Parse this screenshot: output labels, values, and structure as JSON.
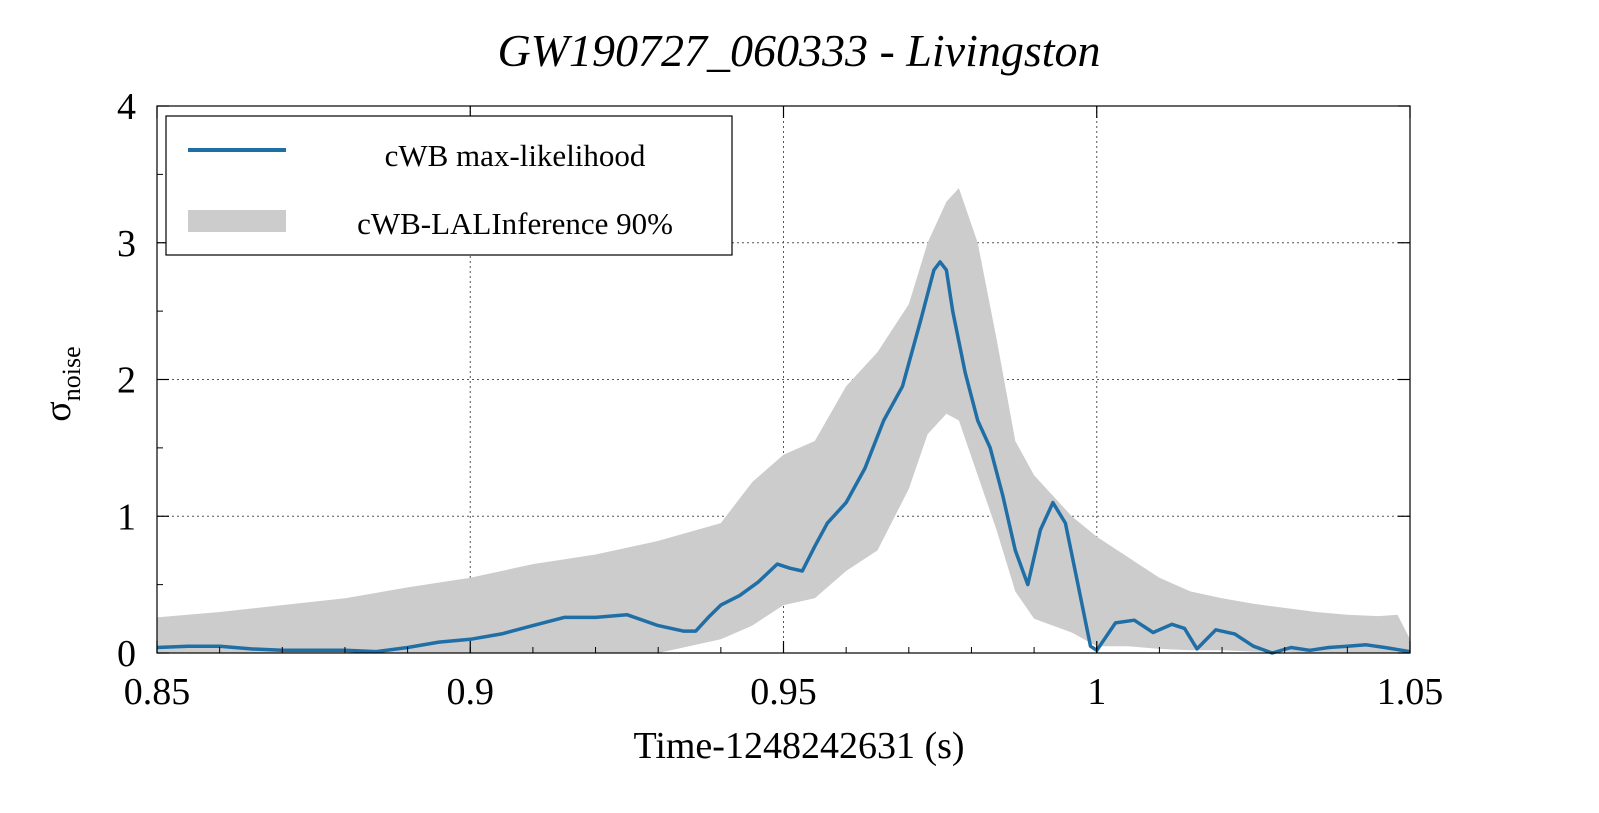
{
  "chart_data": {
    "type": "line",
    "title": "GW190727_060333 - Livingston",
    "xlabel": "Time-1248242631 (s)",
    "ylabel": "σ",
    "ylabel_sub": "noise",
    "xlim": [
      0.85,
      1.05
    ],
    "ylim": [
      0,
      4
    ],
    "xticks": [
      0.85,
      0.9,
      0.95,
      1,
      1.05
    ],
    "xtick_labels": [
      "0.85",
      "0.9",
      "0.95",
      "1",
      "1.05"
    ],
    "yticks": [
      0,
      1,
      2,
      3,
      4
    ],
    "ytick_labels": [
      "0",
      "1",
      "2",
      "3",
      "4"
    ],
    "grid": true,
    "legend_position": "top-left",
    "colors": {
      "line": "#1f6fa6",
      "band": "#cccccc",
      "grid": "#555555",
      "axis": "#000000"
    },
    "series": [
      {
        "name": "cWB max-likelihood",
        "kind": "line",
        "x": [
          0.85,
          0.855,
          0.86,
          0.865,
          0.87,
          0.875,
          0.88,
          0.885,
          0.89,
          0.895,
          0.9,
          0.905,
          0.91,
          0.915,
          0.92,
          0.925,
          0.93,
          0.934,
          0.936,
          0.938,
          0.94,
          0.943,
          0.946,
          0.949,
          0.951,
          0.953,
          0.955,
          0.957,
          0.96,
          0.963,
          0.966,
          0.969,
          0.972,
          0.974,
          0.975,
          0.976,
          0.977,
          0.979,
          0.981,
          0.983,
          0.985,
          0.987,
          0.989,
          0.991,
          0.993,
          0.995,
          0.997,
          0.999,
          1.0,
          1.003,
          1.006,
          1.009,
          1.012,
          1.014,
          1.016,
          1.019,
          1.022,
          1.025,
          1.028,
          1.031,
          1.034,
          1.037,
          1.04,
          1.043,
          1.046,
          1.05
        ],
        "y": [
          0.04,
          0.05,
          0.05,
          0.03,
          0.02,
          0.02,
          0.02,
          0.01,
          0.04,
          0.08,
          0.1,
          0.14,
          0.2,
          0.26,
          0.26,
          0.28,
          0.2,
          0.16,
          0.16,
          0.26,
          0.35,
          0.42,
          0.52,
          0.65,
          0.62,
          0.6,
          0.78,
          0.95,
          1.1,
          1.35,
          1.7,
          1.95,
          2.45,
          2.8,
          2.86,
          2.8,
          2.5,
          2.05,
          1.7,
          1.5,
          1.15,
          0.75,
          0.5,
          0.9,
          1.1,
          0.95,
          0.5,
          0.05,
          0.02,
          0.22,
          0.24,
          0.15,
          0.21,
          0.18,
          0.03,
          0.17,
          0.14,
          0.05,
          0.0,
          0.04,
          0.02,
          0.04,
          0.05,
          0.06,
          0.04,
          0.01
        ]
      },
      {
        "name": "cWB-LALInference 90%",
        "kind": "band",
        "x": [
          0.85,
          0.86,
          0.87,
          0.88,
          0.89,
          0.9,
          0.91,
          0.92,
          0.93,
          0.94,
          0.945,
          0.95,
          0.955,
          0.96,
          0.965,
          0.97,
          0.973,
          0.976,
          0.978,
          0.981,
          0.984,
          0.987,
          0.99,
          0.993,
          0.996,
          1.0,
          1.005,
          1.01,
          1.015,
          1.02,
          1.025,
          1.03,
          1.035,
          1.04,
          1.045,
          1.048,
          1.05
        ],
        "upper": [
          0.26,
          0.3,
          0.35,
          0.4,
          0.48,
          0.55,
          0.65,
          0.72,
          0.82,
          0.95,
          1.25,
          1.45,
          1.55,
          1.95,
          2.2,
          2.55,
          3.0,
          3.3,
          3.4,
          3.0,
          2.3,
          1.55,
          1.3,
          1.15,
          1.0,
          0.85,
          0.7,
          0.55,
          0.45,
          0.4,
          0.36,
          0.33,
          0.3,
          0.28,
          0.27,
          0.28,
          0.1
        ],
        "lower": [
          0.0,
          0.0,
          0.0,
          0.0,
          0.0,
          0.0,
          0.0,
          0.0,
          0.0,
          0.1,
          0.2,
          0.35,
          0.4,
          0.6,
          0.75,
          1.2,
          1.6,
          1.75,
          1.7,
          1.3,
          0.9,
          0.45,
          0.25,
          0.2,
          0.15,
          0.05,
          0.05,
          0.03,
          0.02,
          0.02,
          0.01,
          0.01,
          0.0,
          0.0,
          0.0,
          0.0,
          0.0
        ]
      }
    ]
  }
}
